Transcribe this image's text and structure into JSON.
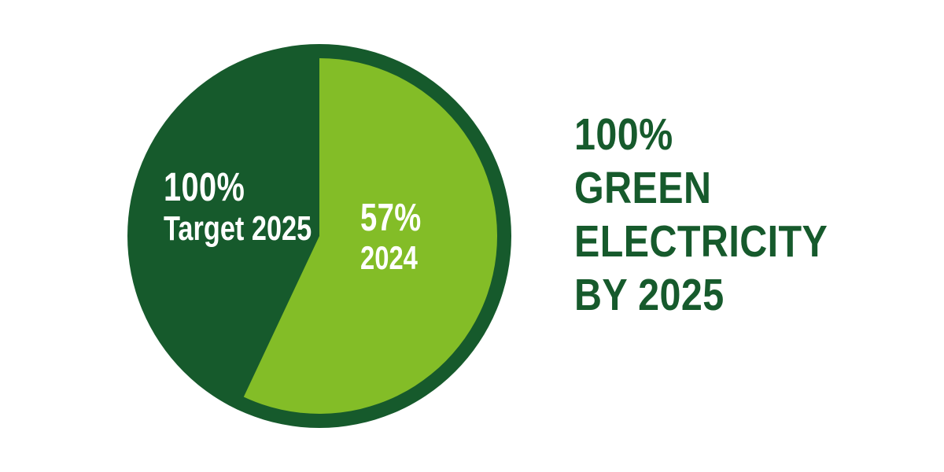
{
  "title": {
    "lines": [
      "100%",
      "GREEN",
      "ELECTRICITY",
      "BY 2025"
    ],
    "color": "#165A2C"
  },
  "chart_data": {
    "type": "pie",
    "title": "100% GREEN ELECTRICITY BY 2025",
    "direction": "clockwise",
    "start_angle_deg": 0,
    "background": "#FFFFFF",
    "outer_ring_color": "#165A2C",
    "slices": [
      {
        "name": "2024",
        "display_value": "57%",
        "value": 57,
        "color": "#83BD27",
        "label_color": "#FFFFFF"
      },
      {
        "name": "Target 2025",
        "display_value": "100%",
        "value": 43,
        "color": "#165A2C",
        "label_color": "#FFFFFF"
      }
    ]
  }
}
